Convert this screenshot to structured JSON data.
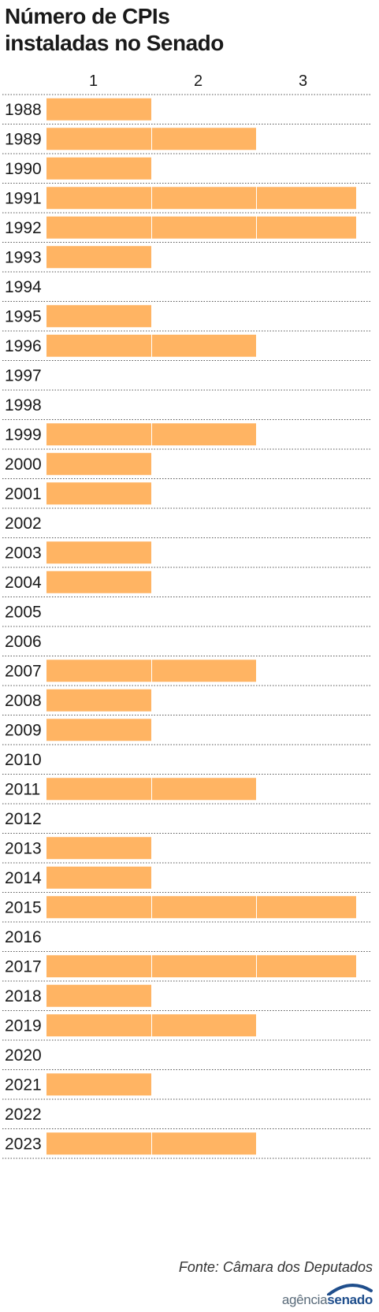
{
  "chart_data": {
    "type": "bar",
    "orientation": "horizontal",
    "title_lines": [
      "Número de CPIs",
      "instaladas no Senado"
    ],
    "x_ticks": [
      "1",
      "2",
      "3"
    ],
    "xlim": [
      0,
      3
    ],
    "categories": [
      "1988",
      "1989",
      "1990",
      "1991",
      "1992",
      "1993",
      "1994",
      "1995",
      "1996",
      "1997",
      "1998",
      "1999",
      "2000",
      "2001",
      "2002",
      "2003",
      "2004",
      "2005",
      "2006",
      "2007",
      "2008",
      "2009",
      "2010",
      "2011",
      "2012",
      "2013",
      "2014",
      "2015",
      "2016",
      "2017",
      "2018",
      "2019",
      "2020",
      "2021",
      "2022",
      "2023"
    ],
    "values": [
      1,
      2,
      1,
      3,
      3,
      1,
      0,
      1,
      2,
      0,
      0,
      2,
      1,
      1,
      0,
      1,
      1,
      0,
      0,
      2,
      1,
      1,
      0,
      2,
      0,
      1,
      1,
      3,
      0,
      3,
      1,
      2,
      0,
      1,
      0,
      2
    ],
    "bar_color": "#ffb463",
    "grid": "dotted row separators"
  },
  "source": "Fonte: Câmara dos Deputados",
  "logo": {
    "part1": "agência",
    "part2": "senado"
  }
}
